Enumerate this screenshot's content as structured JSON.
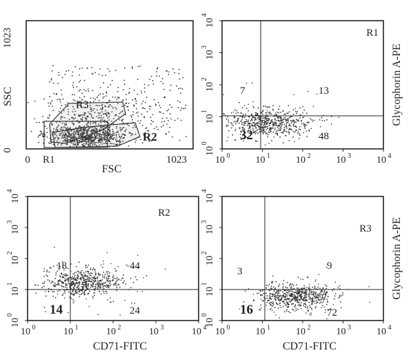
{
  "figure": {
    "panels": [
      {
        "kind": "scatter",
        "xlabel": "FSC",
        "ylabel": "SSC",
        "x_ticks": [
          "0",
          "1023"
        ],
        "y_ticks": [
          "0",
          "1023"
        ],
        "gate_labels": [
          "R1",
          "R2",
          "R3"
        ]
      },
      {
        "kind": "quadrant",
        "region": "R1",
        "x_ticks": [
          "10",
          "10",
          "10",
          "10",
          "10"
        ],
        "x_exp": [
          "0",
          "1",
          "2",
          "3",
          "4"
        ],
        "y_ticks": [
          "10",
          "10",
          "10",
          "10",
          "10"
        ],
        "y_exp": [
          "0",
          "1",
          "2",
          "3",
          "4"
        ],
        "ylabel": "Glycophorin A-PE",
        "quadrants": {
          "ul": "7",
          "ur": "13",
          "ll": "32",
          "lr": "48"
        }
      },
      {
        "kind": "quadrant",
        "region": "R2",
        "x_ticks": [
          "10",
          "10",
          "10",
          "10",
          "10"
        ],
        "x_exp": [
          "0",
          "1",
          "2",
          "3",
          "4"
        ],
        "y_ticks": [
          "10",
          "10",
          "10",
          "10",
          "10"
        ],
        "y_exp": [
          "0",
          "1",
          "2",
          "3",
          "4"
        ],
        "xlabel": "CD71-FITC",
        "quadrants": {
          "ul": "18",
          "ur": "44",
          "ll": "14",
          "lr": "24"
        }
      },
      {
        "kind": "quadrant",
        "region": "R3",
        "x_ticks": [
          "10",
          "10",
          "10",
          "10",
          "10"
        ],
        "x_exp": [
          "0",
          "1",
          "2",
          "3",
          "4"
        ],
        "y_ticks": [
          "10",
          "10",
          "10",
          "10",
          "10"
        ],
        "y_exp": [
          "0",
          "1",
          "2",
          "3",
          "4"
        ],
        "xlabel": "CD71-FITC",
        "ylabel": "Glycophorin A-PE",
        "quadrants": {
          "ul": "3",
          "ur": "9",
          "ll": "16",
          "lr": "72"
        }
      }
    ]
  },
  "chart_data": [
    {
      "type": "scatter",
      "xlabel": "FSC",
      "ylabel": "SSC",
      "xlim": [
        0,
        1023
      ],
      "ylim": [
        0,
        1023
      ],
      "gates": [
        "R1",
        "R2",
        "R3"
      ]
    },
    {
      "type": "scatter",
      "region": "R1",
      "ylabel": "Glycophorin A-PE",
      "xscale": "log",
      "yscale": "log",
      "xlim": [
        1,
        10000
      ],
      "ylim": [
        1,
        10000
      ],
      "quadrant_percent": {
        "upper_left": 7,
        "upper_right": 13,
        "lower_left": 32,
        "lower_right": 48
      }
    },
    {
      "type": "scatter",
      "region": "R2",
      "xlabel": "CD71-FITC",
      "xscale": "log",
      "yscale": "log",
      "xlim": [
        1,
        10000
      ],
      "ylim": [
        1,
        10000
      ],
      "quadrant_percent": {
        "upper_left": 18,
        "upper_right": 44,
        "lower_left": 14,
        "lower_right": 24
      }
    },
    {
      "type": "scatter",
      "region": "R3",
      "xlabel": "CD71-FITC",
      "ylabel": "Glycophorin A-PE",
      "xscale": "log",
      "yscale": "log",
      "xlim": [
        1,
        10000
      ],
      "ylim": [
        1,
        10000
      ],
      "quadrant_percent": {
        "upper_left": 3,
        "upper_right": 9,
        "lower_left": 16,
        "lower_right": 72
      }
    }
  ]
}
